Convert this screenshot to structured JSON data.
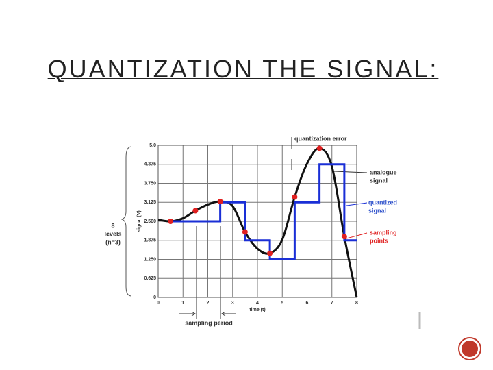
{
  "chart_data": {
    "type": "line",
    "title": "QUANTIZATION THE SIGNAL:",
    "x_label": "time (t)",
    "y_label": "signal (V)",
    "xlim": [
      0,
      8
    ],
    "xticks": [
      0,
      1,
      2,
      3,
      4,
      5,
      6,
      7,
      8
    ],
    "ylim": [
      0,
      5
    ],
    "yticks": [
      0,
      0.625,
      {
        "value": 1.25,
        "label": "1.250"
      },
      1.875,
      {
        "value": 2.5,
        "label": "2.500"
      },
      3.125,
      {
        "value": 3.75,
        "label": "3.750"
      },
      4.375,
      {
        "value": 5,
        "label": "5.0"
      }
    ],
    "grid": true,
    "series": [
      {
        "style": "smooth",
        "color": "#111111",
        "x": [
          0,
          0.5,
          1,
          1.5,
          2,
          2.5,
          3,
          3.5,
          4,
          4.5,
          5,
          5.5,
          6,
          6.5,
          7,
          7.5,
          8
        ],
        "values": [
          2.55,
          2.5,
          2.6,
          2.85,
          3.05,
          3.15,
          3.0,
          2.15,
          1.6,
          1.45,
          1.9,
          3.3,
          4.4,
          4.9,
          4.3,
          2.0,
          0
        ]
      },
      {
        "style": "step",
        "color": "#1a2fd6",
        "x": [
          0.5,
          2.5,
          3.5,
          4.5,
          5.5,
          6.5,
          7.5,
          8
        ],
        "values": [
          2.5,
          3.125,
          1.875,
          1.25,
          3.125,
          4.375,
          1.875,
          1.875
        ]
      },
      {
        "style": "points",
        "color": "#e02020",
        "x": [
          0.5,
          1.5,
          2.5,
          3.5,
          4.5,
          5.5,
          6.5,
          7.5
        ],
        "values": [
          2.5,
          2.85,
          3.15,
          2.15,
          1.45,
          3.3,
          4.9,
          2.0
        ]
      }
    ],
    "annotations": {
      "quantization_error": "quantization error",
      "analogue_signal": [
        "analogue",
        "signal"
      ],
      "quantized_signal": [
        "quantized",
        "signal"
      ],
      "sampling_points": [
        "sampling",
        "points"
      ],
      "levels": [
        "8",
        "levels",
        "(n=3)"
      ],
      "sampling_period": "sampling period"
    }
  }
}
